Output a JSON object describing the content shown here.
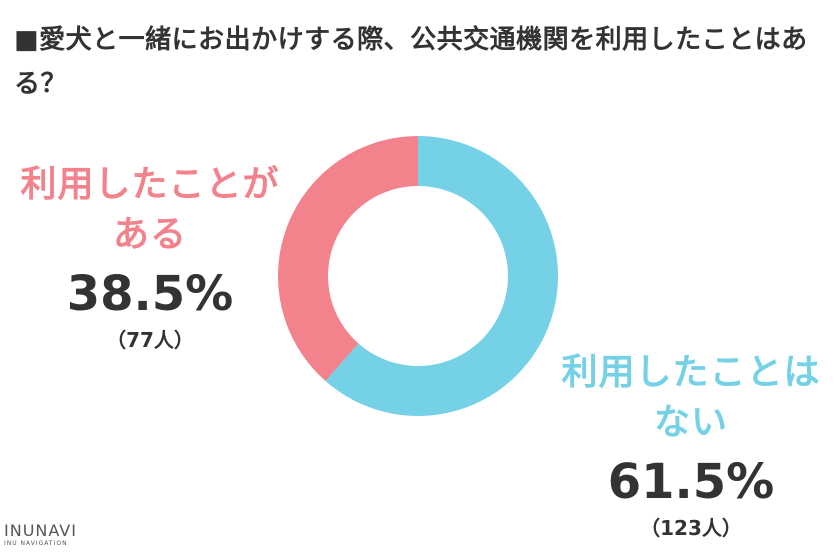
{
  "title": "■愛犬と一緒にお出かけする際、公共交通機関を利用したことはある？",
  "chart_data": {
    "type": "pie",
    "hole": true,
    "series": [
      {
        "label_line1": "利用したことが",
        "label_line2": "ある",
        "percent_text": "38.5%",
        "count_text": "（77人）",
        "value": 38.5,
        "count": 77,
        "color": "#f2828b"
      },
      {
        "label_line1": "利用したことは",
        "label_line2": "ない",
        "percent_text": "61.5%",
        "count_text": "（123人）",
        "value": 61.5,
        "count": 123,
        "color": "#75d1e6"
      }
    ]
  },
  "logo": {
    "main": "INUNAVI",
    "sub": "INU NAVIGATION"
  }
}
